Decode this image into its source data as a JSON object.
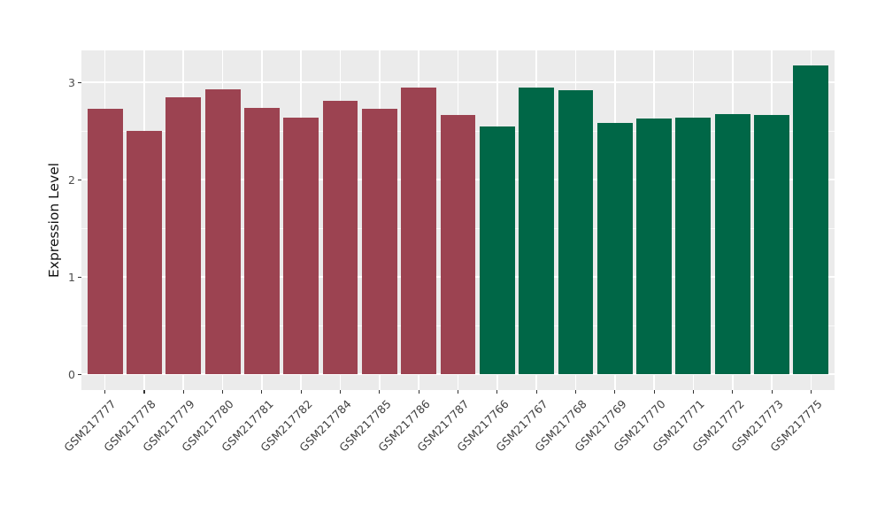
{
  "chart_data": {
    "type": "bar",
    "title": "",
    "xlabel": "",
    "ylabel": "Expression Level",
    "categories": [
      "GSM217777",
      "GSM217778",
      "GSM217779",
      "GSM217780",
      "GSM217781",
      "GSM217782",
      "GSM217784",
      "GSM217785",
      "GSM217786",
      "GSM217787",
      "GSM217766",
      "GSM217767",
      "GSM217768",
      "GSM217769",
      "GSM217770",
      "GSM217771",
      "GSM217772",
      "GSM217773",
      "GSM217775"
    ],
    "values": [
      2.73,
      2.5,
      2.85,
      2.93,
      2.74,
      2.64,
      2.81,
      2.73,
      2.95,
      2.66,
      2.55,
      2.95,
      2.92,
      2.58,
      2.63,
      2.64,
      2.67,
      2.66,
      3.17
    ],
    "groups": [
      "group1",
      "group1",
      "group1",
      "group1",
      "group1",
      "group1",
      "group1",
      "group1",
      "group1",
      "group1",
      "group2",
      "group2",
      "group2",
      "group2",
      "group2",
      "group2",
      "group2",
      "group2",
      "group2"
    ],
    "group_colors": {
      "group1": "#9C4351",
      "group2": "#006747"
    },
    "ylim": [
      0,
      3.33
    ],
    "yticks": [
      0,
      1,
      2,
      3
    ],
    "yticks_minor": [
      0.5,
      1.5,
      2.5
    ],
    "bar_width_fraction": 0.9,
    "panel_background": "#EBEBEB",
    "grid_color": "#FFFFFF",
    "axis_text_color": "#4D4D4D",
    "figure_background": "#FFFFFF",
    "grid": "on",
    "legend_position": "none"
  }
}
